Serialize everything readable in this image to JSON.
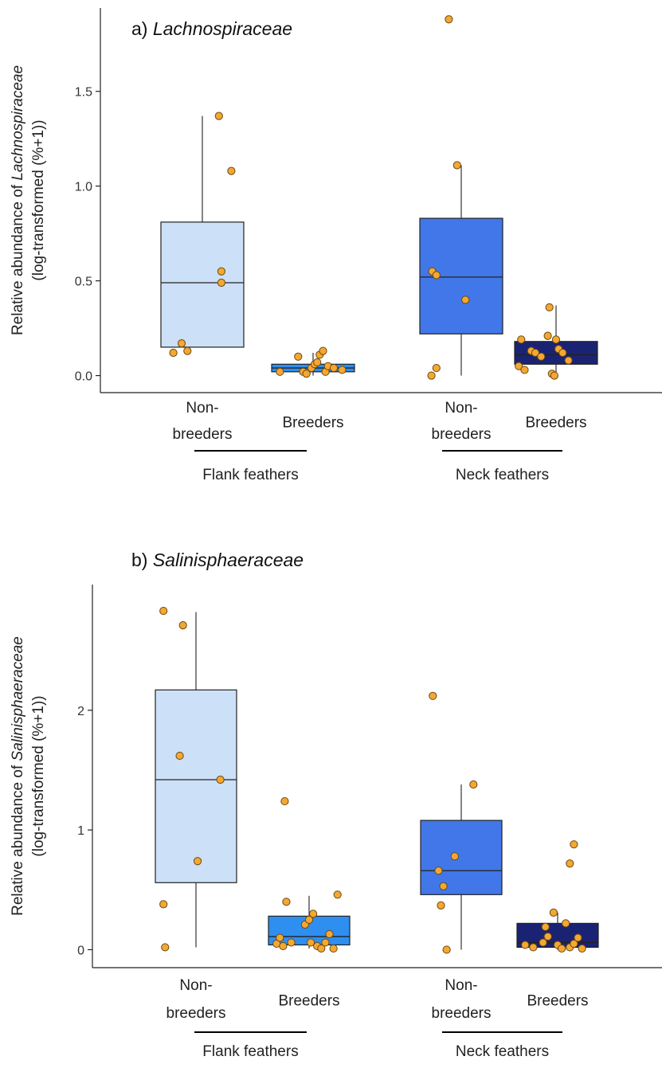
{
  "chart_data": [
    {
      "type": "box",
      "title_prefix": "a)",
      "title_family": "Lachnospiraceae",
      "ylabel_line1_prefix": "Relative abundance of",
      "ylabel_line1_taxon": "Lachnospiraceae",
      "ylabel_line2": "(log-transformed (%+1))",
      "yticks": [
        0.0,
        0.5,
        1.0,
        1.5
      ],
      "ytick_labels": [
        "0.0",
        "0.5",
        "1.0",
        "1.5"
      ],
      "ylim": [
        -0.09,
        1.94
      ],
      "grid": false,
      "groups": [
        {
          "label": "Flank feathers",
          "categories": [
            0,
            1
          ]
        },
        {
          "label": "Neck feathers",
          "categories": [
            2,
            3
          ]
        }
      ],
      "categories": [
        {
          "label_line1": "Non-",
          "label_line2": "breeders",
          "color": "#cce0f7",
          "box": {
            "q1": 0.15,
            "median": 0.49,
            "q3": 0.81,
            "whisker_low": 0.15,
            "whisker_high": 1.37
          },
          "points": [
            {
              "x": -0.25,
              "y": 0.17
            },
            {
              "x": -0.35,
              "y": 0.12
            },
            {
              "x": -0.18,
              "y": 0.13
            },
            {
              "x": 0.23,
              "y": 0.49
            },
            {
              "x": 0.23,
              "y": 0.55
            },
            {
              "x": 0.35,
              "y": 1.08
            },
            {
              "x": 0.2,
              "y": 1.37
            }
          ]
        },
        {
          "label_line1": "",
          "label_line2": "Breeders",
          "color": "#2e8ff0",
          "box": {
            "q1": 0.02,
            "median": 0.04,
            "q3": 0.06,
            "whisker_low": 0.0,
            "whisker_high": 0.12
          },
          "points": [
            {
              "x": -0.4,
              "y": 0.02
            },
            {
              "x": -0.18,
              "y": 0.1
            },
            {
              "x": -0.12,
              "y": 0.02
            },
            {
              "x": -0.08,
              "y": 0.01
            },
            {
              "x": -0.02,
              "y": 0.04
            },
            {
              "x": 0.02,
              "y": 0.06
            },
            {
              "x": 0.05,
              "y": 0.07
            },
            {
              "x": 0.08,
              "y": 0.11
            },
            {
              "x": 0.12,
              "y": 0.13
            },
            {
              "x": 0.15,
              "y": 0.02
            },
            {
              "x": 0.18,
              "y": 0.05
            },
            {
              "x": 0.25,
              "y": 0.04
            },
            {
              "x": 0.35,
              "y": 0.03
            }
          ]
        },
        {
          "label_line1": "Non-",
          "label_line2": "breeders",
          "color": "#4177e8",
          "box": {
            "q1": 0.22,
            "median": 0.52,
            "q3": 0.83,
            "whisker_low": 0.0,
            "whisker_high": 1.11
          },
          "points": [
            {
              "x": -0.36,
              "y": 0.0
            },
            {
              "x": -0.3,
              "y": 0.04
            },
            {
              "x": -0.35,
              "y": 0.55
            },
            {
              "x": -0.3,
              "y": 0.53
            },
            {
              "x": 0.05,
              "y": 0.4
            },
            {
              "x": -0.05,
              "y": 1.11
            },
            {
              "x": -0.15,
              "y": 1.88
            }
          ]
        },
        {
          "label_line1": "",
          "label_line2": "Breeders",
          "color": "#1a2373",
          "box": {
            "q1": 0.06,
            "median": 0.11,
            "q3": 0.18,
            "whisker_low": 0.0,
            "whisker_high": 0.37
          },
          "points": [
            {
              "x": -0.45,
              "y": 0.05
            },
            {
              "x": -0.42,
              "y": 0.19
            },
            {
              "x": -0.38,
              "y": 0.03
            },
            {
              "x": -0.3,
              "y": 0.13
            },
            {
              "x": -0.25,
              "y": 0.12
            },
            {
              "x": -0.18,
              "y": 0.1
            },
            {
              "x": -0.1,
              "y": 0.21
            },
            {
              "x": -0.05,
              "y": 0.01
            },
            {
              "x": 0.0,
              "y": 0.19
            },
            {
              "x": 0.03,
              "y": 0.14
            },
            {
              "x": 0.08,
              "y": 0.12
            },
            {
              "x": 0.15,
              "y": 0.08
            },
            {
              "x": -0.08,
              "y": 0.36
            },
            {
              "x": -0.02,
              "y": 0.0
            }
          ]
        }
      ]
    },
    {
      "type": "box",
      "title_prefix": "b)",
      "title_family": "Salinisphaeraceae",
      "ylabel_line1_prefix": "Relative abundance of",
      "ylabel_line1_taxon": "Salinisphaeraceae",
      "ylabel_line2": "(log-transformed (%+1))",
      "yticks": [
        0,
        1,
        2
      ],
      "ytick_labels": [
        "0",
        "1",
        "2"
      ],
      "ylim": [
        -0.15,
        3.05
      ],
      "grid": false,
      "groups": [
        {
          "label": "Flank feathers",
          "categories": [
            0,
            1
          ]
        },
        {
          "label": "Neck feathers",
          "categories": [
            2,
            3
          ]
        }
      ],
      "categories": [
        {
          "label_line1": "Non-",
          "label_line2": "breeders",
          "color": "#cce0f7",
          "box": {
            "q1": 0.56,
            "median": 1.42,
            "q3": 2.17,
            "whisker_low": 0.02,
            "whisker_high": 2.82
          },
          "points": [
            {
              "x": -0.38,
              "y": 0.02
            },
            {
              "x": -0.4,
              "y": 0.38
            },
            {
              "x": 0.02,
              "y": 0.74
            },
            {
              "x": -0.2,
              "y": 1.62
            },
            {
              "x": 0.3,
              "y": 1.42
            },
            {
              "x": -0.16,
              "y": 2.71
            },
            {
              "x": -0.4,
              "y": 2.83
            }
          ]
        },
        {
          "label_line1": "",
          "label_line2": "Breeders",
          "color": "#2e8ff0",
          "box": {
            "q1": 0.04,
            "median": 0.11,
            "q3": 0.28,
            "whisker_low": 0.01,
            "whisker_high": 0.45
          },
          "points": [
            {
              "x": -0.4,
              "y": 0.05
            },
            {
              "x": -0.36,
              "y": 0.1
            },
            {
              "x": -0.32,
              "y": 0.03
            },
            {
              "x": -0.28,
              "y": 0.4
            },
            {
              "x": -0.22,
              "y": 0.06
            },
            {
              "x": -0.3,
              "y": 1.24
            },
            {
              "x": -0.05,
              "y": 0.21
            },
            {
              "x": 0.0,
              "y": 0.25
            },
            {
              "x": 0.05,
              "y": 0.3
            },
            {
              "x": 0.02,
              "y": 0.06
            },
            {
              "x": 0.1,
              "y": 0.03
            },
            {
              "x": 0.2,
              "y": 0.06
            },
            {
              "x": 0.25,
              "y": 0.13
            },
            {
              "x": 0.3,
              "y": 0.01
            },
            {
              "x": 0.35,
              "y": 0.46
            },
            {
              "x": 0.15,
              "y": 0.01
            }
          ]
        },
        {
          "label_line1": "Non-",
          "label_line2": "breeders",
          "color": "#4177e8",
          "box": {
            "q1": 0.46,
            "median": 0.66,
            "q3": 1.08,
            "whisker_low": 0.0,
            "whisker_high": 1.38
          },
          "points": [
            {
              "x": -0.18,
              "y": 0.0
            },
            {
              "x": -0.25,
              "y": 0.37
            },
            {
              "x": -0.22,
              "y": 0.53
            },
            {
              "x": -0.28,
              "y": 0.66
            },
            {
              "x": -0.08,
              "y": 0.78
            },
            {
              "x": 0.15,
              "y": 1.38
            },
            {
              "x": -0.35,
              "y": 2.12
            }
          ]
        },
        {
          "label_line1": "",
          "label_line2": "Breeders",
          "color": "#1a2373",
          "box": {
            "q1": 0.02,
            "median": 0.06,
            "q3": 0.22,
            "whisker_low": 0.0,
            "whisker_high": 0.31
          },
          "points": [
            {
              "x": -0.4,
              "y": 0.04
            },
            {
              "x": -0.3,
              "y": 0.02
            },
            {
              "x": -0.18,
              "y": 0.06
            },
            {
              "x": -0.12,
              "y": 0.11
            },
            {
              "x": -0.15,
              "y": 0.19
            },
            {
              "x": -0.05,
              "y": 0.31
            },
            {
              "x": 0.0,
              "y": 0.04
            },
            {
              "x": 0.05,
              "y": 0.01
            },
            {
              "x": 0.1,
              "y": 0.22
            },
            {
              "x": 0.15,
              "y": 0.02
            },
            {
              "x": 0.2,
              "y": 0.05
            },
            {
              "x": 0.25,
              "y": 0.1
            },
            {
              "x": 0.15,
              "y": 0.72
            },
            {
              "x": 0.2,
              "y": 0.88
            },
            {
              "x": 0.3,
              "y": 0.01
            }
          ]
        }
      ]
    }
  ]
}
